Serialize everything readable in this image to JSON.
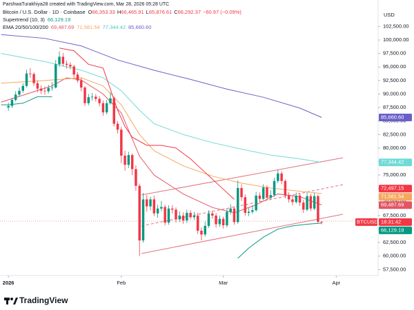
{
  "header": {
    "credit": "ParshwaTurakhiya28 created with TradingView.com, Mar 28, 2026 05:28 UTC",
    "currency": "USD",
    "brand": "TradingView"
  },
  "legend": {
    "symbol": "Bitcoin / U.S. Dollar · 1D · Coinbase",
    "ohlc": [
      {
        "key": "O",
        "value": "66,353.33"
      },
      {
        "key": "H",
        "value": "66,465.91"
      },
      {
        "key": "L",
        "value": "65,876.61"
      },
      {
        "key": "C",
        "value": "66,292.37"
      }
    ],
    "change": "−60.97 (−0.09%)",
    "supertrend_name": "Supertrend (10, 3)",
    "supertrend_value": "66,129.19",
    "ema_name": "EMA 20/50/100/200",
    "ema_values": [
      "69,487.69",
      "71,581.54",
      "77,344.42",
      "85,660.60"
    ]
  },
  "chart_data": {
    "type": "candlestick",
    "up_color": "#089981",
    "down_color": "#f23645",
    "x": [
      0,
      1,
      2,
      3,
      4,
      5,
      6,
      7,
      8,
      9,
      10,
      11,
      12,
      13,
      14,
      15,
      16,
      17,
      18,
      19,
      20,
      21,
      22,
      23,
      24,
      25,
      26,
      27,
      28,
      29,
      30,
      31,
      32,
      33,
      34,
      35,
      36,
      37,
      38,
      39,
      40,
      41,
      42,
      43,
      44,
      45,
      46,
      47,
      48,
      49,
      50,
      51,
      52,
      53,
      54,
      55,
      56,
      57,
      58,
      59,
      60,
      61,
      62,
      63,
      64,
      65,
      66,
      67,
      68,
      69,
      70,
      71,
      72,
      73,
      74,
      75,
      76,
      77,
      78,
      79,
      80,
      81,
      82,
      83,
      84,
      85,
      86
    ],
    "open": [
      87500,
      87800,
      88900,
      89900,
      90600,
      91500,
      93800,
      93700,
      92000,
      91000,
      90600,
      90500,
      91100,
      91200,
      95500,
      96900,
      95600,
      95400,
      95100,
      93600,
      92500,
      91200,
      88300,
      89400,
      89500,
      89100,
      88300,
      86600,
      88300,
      89200,
      84500,
      83400,
      78600,
      76900,
      78700,
      76100,
      73000,
      62900,
      70500,
      69200,
      70500,
      67900,
      68800,
      69100,
      66200,
      68800,
      68600,
      66800,
      67500,
      66600,
      68000,
      67200,
      67500,
      64700,
      64000,
      65600,
      67900,
      67500,
      65900,
      66900,
      65700,
      68200,
      68800,
      66300,
      72600,
      70900,
      68000,
      68200,
      68500,
      71200,
      70600,
      72700,
      70800,
      71300,
      73900,
      75300,
      73900,
      71200,
      70500,
      70000,
      71200,
      69900,
      68600,
      71100,
      68800,
      71100,
      66353.33
    ],
    "high": [
      88400,
      89300,
      90500,
      91200,
      92000,
      94500,
      94800,
      94000,
      92500,
      91600,
      91400,
      91700,
      92200,
      96300,
      97900,
      97600,
      96200,
      95900,
      95400,
      94100,
      93000,
      91500,
      90000,
      90200,
      90000,
      89600,
      88800,
      88900,
      90300,
      89500,
      85000,
      83900,
      79500,
      79300,
      79000,
      76800,
      73400,
      71700,
      71300,
      71000,
      71200,
      69500,
      70200,
      69500,
      69400,
      69400,
      69000,
      68300,
      68100,
      68600,
      68500,
      68200,
      68000,
      65300,
      66400,
      68500,
      68400,
      68000,
      67500,
      67300,
      68900,
      69600,
      69200,
      74000,
      73300,
      71400,
      68900,
      69400,
      71900,
      71800,
      73300,
      73100,
      72200,
      74500,
      76000,
      75700,
      74200,
      71800,
      71100,
      71800,
      71700,
      70400,
      71800,
      71500,
      71700,
      71400,
      66465.91
    ],
    "low": [
      86900,
      87400,
      88600,
      89500,
      90200,
      91200,
      93000,
      91500,
      90300,
      90000,
      89900,
      90100,
      90600,
      91000,
      95000,
      95100,
      94700,
      94600,
      93000,
      92100,
      90500,
      87800,
      87900,
      88800,
      88600,
      87700,
      86000,
      86200,
      88000,
      84000,
      82700,
      77200,
      75800,
      76300,
      75000,
      72100,
      60000,
      62500,
      68200,
      68500,
      67400,
      67100,
      68300,
      65700,
      65800,
      67900,
      66200,
      66300,
      66000,
      66100,
      66800,
      66700,
      64100,
      62900,
      63600,
      65200,
      66900,
      65300,
      65400,
      65100,
      65300,
      67700,
      65800,
      66000,
      70200,
      67500,
      67400,
      67800,
      68200,
      70000,
      70300,
      70300,
      70500,
      71000,
      73500,
      73300,
      70700,
      69900,
      69400,
      69700,
      69300,
      68000,
      68300,
      68300,
      68500,
      66000,
      65876.61
    ],
    "close": [
      87800,
      88900,
      89900,
      90600,
      91500,
      93800,
      93700,
      92000,
      91000,
      90600,
      90500,
      91100,
      91200,
      95500,
      96900,
      95600,
      95400,
      95100,
      93600,
      92500,
      91200,
      88300,
      89400,
      89500,
      89100,
      88300,
      86600,
      88300,
      89200,
      84500,
      83400,
      78600,
      76900,
      78700,
      76100,
      73000,
      62900,
      70500,
      69200,
      70500,
      67900,
      68800,
      69100,
      66200,
      68800,
      68600,
      66800,
      67500,
      66600,
      68000,
      67200,
      67500,
      64700,
      64000,
      65600,
      67900,
      67500,
      65900,
      66900,
      65700,
      68200,
      68800,
      66300,
      72600,
      70900,
      68000,
      68200,
      68500,
      71200,
      70600,
      72700,
      70800,
      71300,
      73900,
      75300,
      73900,
      71200,
      70500,
      70000,
      71200,
      69900,
      68600,
      71100,
      68800,
      71100,
      66353.33,
      66292.37
    ],
    "series": [
      {
        "name": "EMA 20",
        "color": "#e25563",
        "x": [
          -2,
          5,
          12,
          16,
          20,
          26,
          31,
          36,
          40,
          48,
          56,
          62,
          68,
          74,
          80,
          86
        ],
        "values": [
          88500,
          90000,
          91500,
          93000,
          92600,
          90000,
          86500,
          78500,
          75000,
          71500,
          69000,
          68000,
          69500,
          71500,
          71000,
          69487.69
        ]
      },
      {
        "name": "EMA 50",
        "color": "#f5a75e",
        "x": [
          -2,
          10,
          20,
          26,
          31,
          36,
          40,
          48,
          56,
          64,
          72,
          80,
          86
        ],
        "values": [
          92000,
          92500,
          93000,
          91500,
          88000,
          82500,
          79500,
          76700,
          74800,
          73500,
          72600,
          72000,
          71581.54
        ]
      },
      {
        "name": "EMA 100",
        "color": "#6fdad6",
        "x": [
          -2,
          10,
          20,
          26,
          31,
          36,
          40,
          48,
          56,
          64,
          72,
          80,
          86
        ],
        "values": [
          97500,
          96000,
          94400,
          93000,
          90600,
          87000,
          84500,
          82500,
          81000,
          79800,
          78700,
          78000,
          77344.42
        ]
      },
      {
        "name": "EMA 200",
        "color": "#6a5fc9",
        "x": [
          -2,
          10,
          20,
          30,
          40,
          50,
          60,
          70,
          80,
          86
        ],
        "values": [
          101000,
          100300,
          98900,
          96300,
          94400,
          92700,
          90900,
          89400,
          87400,
          85660.6
        ]
      }
    ],
    "supertrend": {
      "up_color": "#089981",
      "down_color": "#f23645",
      "x": [
        -2,
        0,
        4,
        8,
        12,
        14,
        18,
        22,
        26,
        30,
        32,
        34,
        38,
        42,
        46,
        50,
        54,
        58,
        62,
        63,
        66,
        70,
        74,
        78,
        82,
        86
      ],
      "up": [
        88000,
        88000,
        88300,
        89500,
        89500,
        null,
        null,
        null,
        null,
        null,
        null,
        null,
        null,
        null,
        null,
        null,
        null,
        null,
        null,
        59600,
        61500,
        63500,
        65000,
        65600,
        65900,
        66129.19
      ],
      "down": [
        null,
        null,
        null,
        null,
        null,
        98500,
        98000,
        95500,
        94800,
        87000,
        84000,
        82000,
        80500,
        80500,
        80000,
        78000,
        75500,
        73000,
        70500,
        null,
        null,
        null,
        null,
        null,
        null,
        null
      ]
    },
    "price_tags": [
      {
        "value": 85660.6,
        "label": "85,660.60",
        "color": "#6a5fc9"
      },
      {
        "value": 77344.42,
        "label": "77,344.42",
        "color": "#6fdad6"
      },
      {
        "value": 72497.15,
        "label": "72,497.15",
        "color": "#f23645"
      },
      {
        "value": 71581.54,
        "label": "71,581.54",
        "color": "#f5a75e"
      },
      {
        "value": 69487.69,
        "label": "69,487.69",
        "color": "#e25563"
      },
      {
        "value": 66292.37,
        "label": "18:31:42",
        "symbol": "BTCUSD",
        "color": "#f23645"
      },
      {
        "value": 66129.19,
        "label": "66,129.19",
        "color": "#089981"
      }
    ],
    "xlim": [
      -2.3,
      101.5
    ],
    "xticks": [
      {
        "value": 0,
        "label": "2026"
      },
      {
        "value": 31,
        "label": "Feb"
      },
      {
        "value": 59,
        "label": "Mar"
      },
      {
        "value": 90,
        "label": "Apr"
      }
    ],
    "ylim": [
      56400,
      107400
    ],
    "yticks": [
      {
        "value": 57500,
        "label": "57,500.00"
      },
      {
        "value": 60000,
        "label": "60,000.00"
      },
      {
        "value": 62500,
        "label": "62,500.00"
      },
      {
        "value": 65000,
        "label": "65,000.00"
      },
      {
        "value": 67500,
        "label": "67,500.00"
      },
      {
        "value": 70000,
        "label": "70,000.00"
      },
      {
        "value": 72500,
        "label": "72,500.00"
      },
      {
        "value": 75000,
        "label": "75,000.00"
      },
      {
        "value": 77500,
        "label": "77,500.00"
      },
      {
        "value": 80000,
        "label": "80,000.00"
      },
      {
        "value": 82500,
        "label": "82,500.00"
      },
      {
        "value": 85000,
        "label": "85,000.00"
      },
      {
        "value": 87500,
        "label": "87,500.00"
      },
      {
        "value": 90000,
        "label": "90,000.00"
      },
      {
        "value": 92500,
        "label": "92,500.00"
      },
      {
        "value": 95000,
        "label": "95,000.00"
      },
      {
        "value": 97500,
        "label": "97,500.00"
      },
      {
        "value": 100000,
        "label": "100,000.00"
      },
      {
        "value": 102500,
        "label": "102,500.00"
      }
    ],
    "grid": false
  }
}
